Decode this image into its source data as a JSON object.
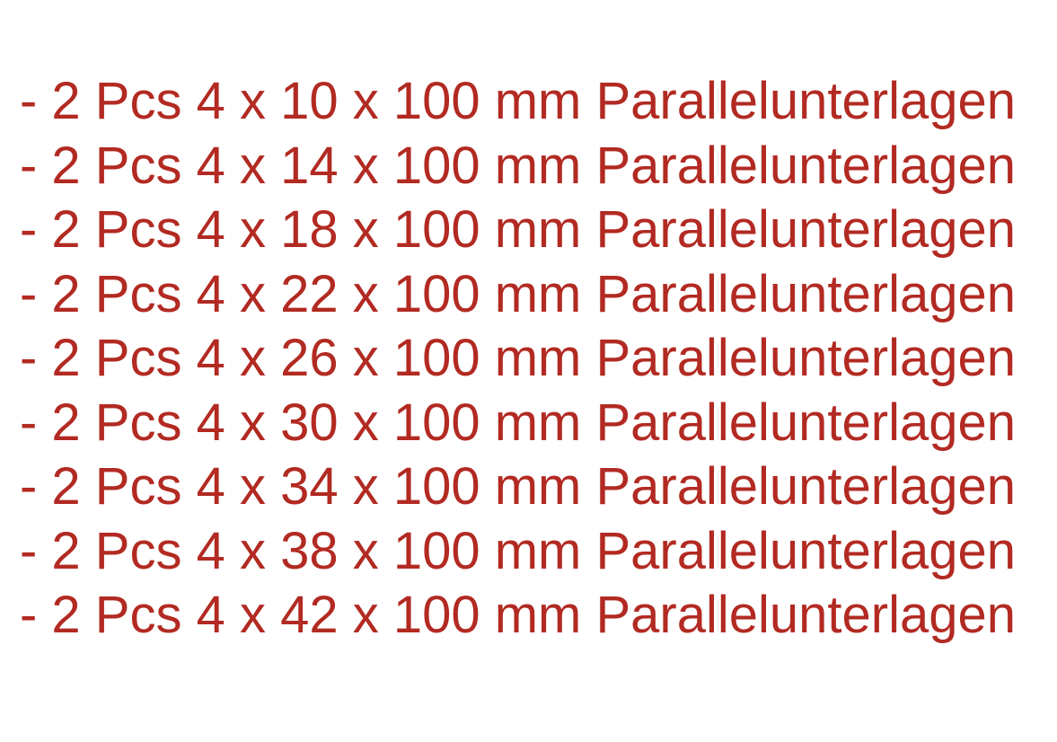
{
  "text_color": "#b22a22",
  "items": [
    "- 2 Pcs 4 x 10 x 100 mm Parallelunterlagen",
    "- 2 Pcs 4 x 14 x 100 mm Parallelunterlagen",
    "- 2 Pcs 4 x 18 x 100 mm Parallelunterlagen",
    "- 2 Pcs 4 x 22 x 100 mm Parallelunterlagen",
    "- 2 Pcs 4 x 26 x 100 mm Parallelunterlagen",
    "- 2 Pcs 4 x 30 x 100 mm Parallelunterlagen",
    "- 2 Pcs 4 x 34 x 100 mm Parallelunterlagen",
    "- 2 Pcs 4 x 38 x 100 mm Parallelunterlagen",
    "- 2 Pcs 4 x 42 x 100 mm Parallelunterlagen"
  ]
}
